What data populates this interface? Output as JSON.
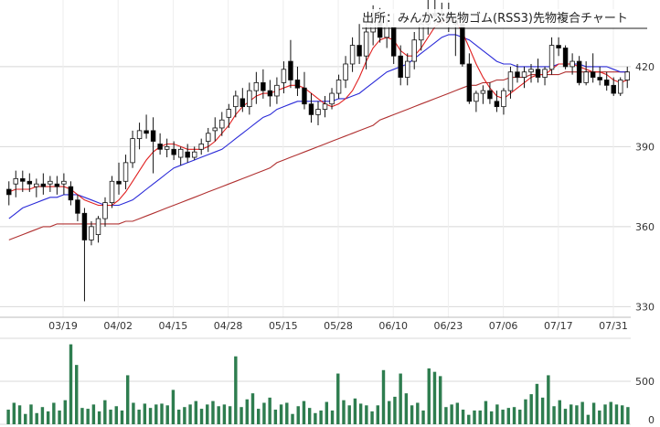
{
  "chart_data": [
    {
      "type": "candlestick",
      "title": "出所：みんかぶ先物ゴム(RSS3)先物複合チャート",
      "y_ticks": [
        330,
        360,
        390,
        420
      ],
      "ylim": [
        326,
        445
      ],
      "x_ticks": [
        "03/19",
        "04/02",
        "04/15",
        "04/28",
        "05/15",
        "05/28",
        "06/10",
        "06/23",
        "07/06",
        "07/17",
        "07/31"
      ],
      "grid": true,
      "colors": {
        "up": "#ffffff",
        "down": "#000000",
        "ma_short": "#e02020",
        "ma_mid": "#2a2ad8",
        "ma_long": "#b03030"
      },
      "candles": [
        [
          374,
          377,
          368,
          372
        ],
        [
          376,
          381,
          371,
          378
        ],
        [
          378,
          381,
          373,
          377
        ],
        [
          377,
          380,
          373,
          376
        ],
        [
          375,
          378,
          371,
          376
        ],
        [
          376,
          380,
          372,
          375
        ],
        [
          376,
          379,
          373,
          377
        ],
        [
          376,
          379,
          372,
          375
        ],
        [
          376,
          380,
          372,
          377
        ],
        [
          375,
          377,
          368,
          370
        ],
        [
          370,
          372,
          362,
          365
        ],
        [
          365,
          367,
          332,
          355
        ],
        [
          355,
          362,
          353,
          360
        ],
        [
          357,
          364,
          354,
          363
        ],
        [
          363,
          371,
          360,
          369
        ],
        [
          369,
          379,
          367,
          377
        ],
        [
          377,
          384,
          372,
          376
        ],
        [
          377,
          387,
          374,
          384
        ],
        [
          384,
          396,
          382,
          393
        ],
        [
          393,
          399,
          389,
          396
        ],
        [
          396,
          402,
          393,
          395
        ],
        [
          396,
          401,
          380,
          392
        ],
        [
          391,
          395,
          387,
          389
        ],
        [
          389,
          393,
          386,
          390
        ],
        [
          389,
          392,
          385,
          387
        ],
        [
          386,
          390,
          383,
          389
        ],
        [
          388,
          391,
          384,
          386
        ],
        [
          386,
          390,
          385,
          388
        ],
        [
          389,
          393,
          387,
          391
        ],
        [
          392,
          397,
          388,
          395
        ],
        [
          396,
          401,
          392,
          397
        ],
        [
          397,
          403,
          394,
          400
        ],
        [
          401,
          406,
          397,
          404
        ],
        [
          405,
          411,
          401,
          409
        ],
        [
          408,
          412,
          403,
          405
        ],
        [
          405,
          414,
          402,
          411
        ],
        [
          411,
          418,
          406,
          414
        ],
        [
          414,
          419,
          408,
          411
        ],
        [
          411,
          415,
          405,
          409
        ],
        [
          409,
          416,
          406,
          413
        ],
        [
          414,
          422,
          410,
          419
        ],
        [
          422,
          430,
          412,
          415
        ],
        [
          415,
          420,
          409,
          412
        ],
        [
          412,
          418,
          404,
          406
        ],
        [
          406,
          410,
          399,
          402
        ],
        [
          402,
          407,
          398,
          404
        ],
        [
          404,
          409,
          401,
          406
        ],
        [
          406,
          412,
          404,
          410
        ],
        [
          410,
          417,
          408,
          415
        ],
        [
          415,
          424,
          412,
          421
        ],
        [
          421,
          431,
          418,
          428
        ],
        [
          428,
          436,
          421,
          424
        ],
        [
          424,
          437,
          419,
          433
        ],
        [
          433,
          443,
          428,
          437
        ],
        [
          437,
          442,
          429,
          431
        ],
        [
          431,
          438,
          427,
          435
        ],
        [
          435,
          440,
          421,
          424
        ],
        [
          424,
          428,
          413,
          416
        ],
        [
          416,
          425,
          413,
          422
        ],
        [
          422,
          433,
          419,
          430
        ],
        [
          430,
          439,
          426,
          436
        ],
        [
          436,
          445,
          432,
          440
        ],
        [
          440,
          445,
          436,
          439
        ],
        [
          439,
          444,
          436,
          440
        ],
        [
          440,
          444,
          433,
          437
        ],
        [
          437,
          440,
          424,
          436
        ],
        [
          436,
          438,
          420,
          421
        ],
        [
          421,
          425,
          406,
          407
        ],
        [
          407,
          411,
          403,
          410
        ],
        [
          410,
          413,
          406,
          411
        ],
        [
          411,
          414,
          406,
          408
        ],
        [
          407,
          411,
          403,
          405
        ],
        [
          405,
          412,
          402,
          411
        ],
        [
          411,
          420,
          408,
          418
        ],
        [
          418,
          421,
          414,
          416
        ],
        [
          416,
          420,
          412,
          418
        ],
        [
          418,
          421,
          414,
          419
        ],
        [
          419,
          423,
          414,
          416
        ],
        [
          416,
          420,
          413,
          419
        ],
        [
          419,
          431,
          417,
          428
        ],
        [
          428,
          431,
          424,
          427
        ],
        [
          427,
          428,
          419,
          420
        ],
        [
          420,
          425,
          417,
          422
        ],
        [
          422,
          424,
          413,
          414
        ],
        [
          414,
          422,
          413,
          418
        ],
        [
          418,
          425,
          414,
          416
        ],
        [
          416,
          420,
          413,
          415
        ],
        [
          415,
          418,
          411,
          413
        ],
        [
          413,
          416,
          409,
          410
        ],
        [
          410,
          416,
          409,
          415
        ],
        [
          415,
          420,
          412,
          418
        ]
      ],
      "ma_short": [
        373,
        374,
        374,
        374,
        375,
        375,
        375,
        375,
        375,
        374,
        372,
        370,
        369,
        368,
        368,
        368,
        370,
        373,
        377,
        381,
        385,
        388,
        390,
        391,
        391,
        390,
        389,
        389,
        389,
        390,
        392,
        395,
        398,
        402,
        405,
        407,
        409,
        410,
        410,
        411,
        412,
        413,
        413,
        412,
        410,
        408,
        406,
        405,
        406,
        408,
        411,
        416,
        422,
        427,
        430,
        431,
        430,
        426,
        424,
        424,
        427,
        431,
        435,
        437,
        438,
        437,
        433,
        427,
        421,
        416,
        412,
        409,
        408,
        410,
        412,
        414,
        416,
        417,
        417,
        419,
        421,
        421,
        421,
        420,
        419,
        418,
        418,
        417,
        415,
        414,
        415
      ],
      "ma_mid": [
        363,
        365,
        367,
        368,
        369,
        370,
        371,
        371,
        372,
        372,
        372,
        371,
        370,
        369,
        368,
        368,
        368,
        369,
        370,
        372,
        374,
        376,
        378,
        380,
        382,
        383,
        384,
        385,
        386,
        387,
        388,
        389,
        391,
        393,
        395,
        397,
        399,
        401,
        402,
        404,
        405,
        406,
        407,
        407,
        407,
        407,
        407,
        407,
        408,
        408,
        409,
        410,
        412,
        414,
        416,
        418,
        419,
        420,
        421,
        423,
        425,
        427,
        429,
        431,
        432,
        432,
        431,
        430,
        428,
        426,
        424,
        422,
        421,
        421,
        420,
        420,
        420,
        420,
        420,
        420,
        421,
        421,
        421,
        421,
        420,
        420,
        420,
        420,
        419,
        418,
        418
      ],
      "ma_long": [
        355,
        356,
        357,
        358,
        359,
        360,
        360,
        361,
        361,
        361,
        361,
        361,
        361,
        361,
        361,
        361,
        361,
        362,
        362,
        363,
        364,
        365,
        366,
        367,
        368,
        369,
        370,
        371,
        372,
        373,
        374,
        375,
        376,
        377,
        378,
        379,
        380,
        381,
        382,
        384,
        385,
        386,
        387,
        388,
        389,
        390,
        391,
        392,
        393,
        394,
        395,
        396,
        397,
        398,
        400,
        401,
        402,
        403,
        404,
        405,
        406,
        407,
        408,
        409,
        410,
        411,
        412,
        413,
        413,
        414,
        414,
        415,
        415,
        416,
        416,
        416,
        417,
        417,
        417,
        417,
        417,
        418,
        418,
        418,
        418,
        418,
        418,
        418,
        418,
        418,
        418
      ]
    },
    {
      "type": "bar",
      "yticks": [
        0,
        500
      ],
      "ylim": [
        0,
        1000
      ],
      "color": "#2e7d4f",
      "values": [
        170,
        250,
        220,
        120,
        230,
        130,
        200,
        150,
        250,
        160,
        280,
        930,
        690,
        190,
        180,
        230,
        150,
        280,
        170,
        210,
        160,
        570,
        250,
        170,
        240,
        190,
        230,
        240,
        220,
        400,
        170,
        200,
        230,
        270,
        180,
        230,
        270,
        210,
        230,
        210,
        790,
        200,
        290,
        360,
        180,
        250,
        310,
        170,
        230,
        250,
        120,
        210,
        270,
        190,
        130,
        160,
        260,
        160,
        590,
        280,
        220,
        300,
        240,
        220,
        150,
        220,
        630,
        270,
        320,
        590,
        360,
        220,
        250,
        160,
        650,
        610,
        560,
        200,
        230,
        250,
        170,
        110,
        160,
        160,
        270,
        150,
        230,
        170,
        190,
        200,
        170,
        290,
        350,
        470,
        310,
        570,
        210,
        280,
        180,
        230,
        220,
        260,
        110,
        250,
        160,
        230,
        260,
        230,
        220,
        200
      ]
    }
  ]
}
